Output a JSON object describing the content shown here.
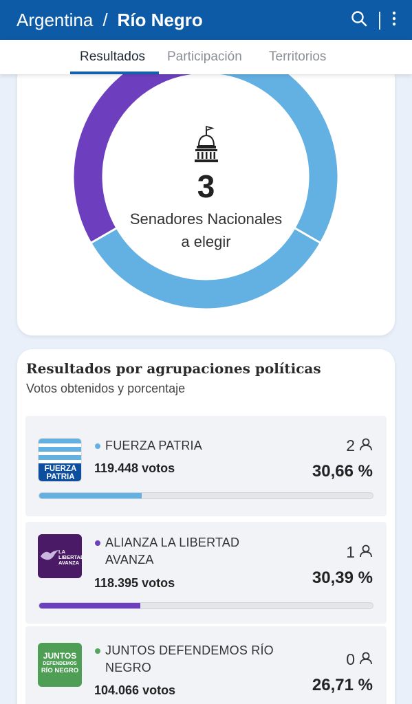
{
  "header": {
    "country": "Argentina",
    "separator": "/",
    "province": "Río Negro",
    "icons": [
      "search-icon",
      "more-vertical-icon"
    ],
    "background": "#0d5aa6"
  },
  "tabs": [
    {
      "label": "Resultados",
      "active": true
    },
    {
      "label": "Participación",
      "active": false
    },
    {
      "label": "Territorios",
      "active": false
    }
  ],
  "summary": {
    "seats_number": "3",
    "line1": "Senadores Nacionales",
    "line2": "a elegir",
    "icon": "capitol-icon"
  },
  "chart_data": {
    "type": "pie",
    "categories": [
      "FUERZA PATRIA",
      "ALIANZA LA LIBERTAD AVANZA"
    ],
    "values": [
      2,
      1
    ],
    "colors": [
      "#63b0e3",
      "#6d3fbf"
    ]
  },
  "results": {
    "title": "Resultados por agrupaciones políticas",
    "subtitle": "Votos obtenidos y porcentaje",
    "parties": [
      {
        "name": "FUERZA PATRIA",
        "votes": "119.448 votos",
        "seats": "2",
        "percent": "30,66 %",
        "percent_value": 30.66,
        "color": "#63b0e3",
        "logo": "fuerza-patria-logo",
        "logo_text_1": "FUERZA",
        "logo_text_2": "PATRIA"
      },
      {
        "name": "ALIANZA LA LIBERTAD AVANZA",
        "votes": "118.395 votos",
        "seats": "1",
        "percent": "30,39 %",
        "percent_value": 30.39,
        "color": "#6d3fbf",
        "logo": "libertad-avanza-logo",
        "logo_text_1": "LA",
        "logo_text_2": "LIBERTAD",
        "logo_text_3": "AVANZA"
      },
      {
        "name": "JUNTOS DEFENDEMOS RÍO NEGRO",
        "votes": "104.066 votos",
        "seats": "0",
        "percent": "26,71 %",
        "percent_value": 26.71,
        "color": "#55a55a",
        "logo": "juntos-logo",
        "logo_text_1": "JUNTOS",
        "logo_text_2": "DEFENDEMOS",
        "logo_text_3": "RÍO NEGRO"
      }
    ]
  }
}
